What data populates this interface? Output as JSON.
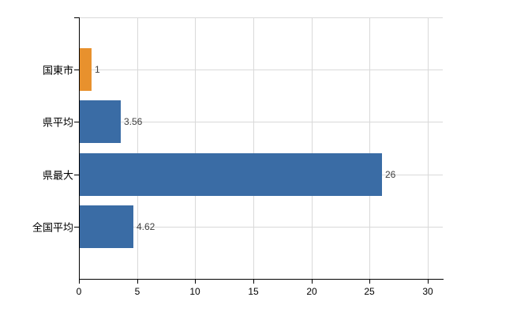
{
  "chart_data": {
    "type": "bar",
    "orientation": "horizontal",
    "title": "",
    "xlabel": "",
    "ylabel": "",
    "categories": [
      "国東市",
      "県平均",
      "県最大",
      "全国平均"
    ],
    "values": [
      1,
      3.56,
      26,
      4.62
    ],
    "value_labels": [
      "1",
      "3.56",
      "26",
      "4.62"
    ],
    "bar_colors": [
      "#e8912d",
      "#3a6ca5",
      "#3a6ca5",
      "#3a6ca5"
    ],
    "x_ticks": [
      0,
      5,
      10,
      15,
      20,
      25,
      30
    ],
    "x_tick_labels": [
      "0",
      "5",
      "10",
      "15",
      "20",
      "25",
      "30"
    ],
    "xlim": [
      0,
      31.3
    ],
    "grid": true,
    "legend": false,
    "colors": {
      "highlight_bar": "#e8912d",
      "default_bar": "#3a6ca5",
      "grid": "#d9d9d9",
      "axis": "#000000",
      "value_text": "#404040",
      "tick_text": "#000000",
      "background": "#ffffff"
    }
  }
}
